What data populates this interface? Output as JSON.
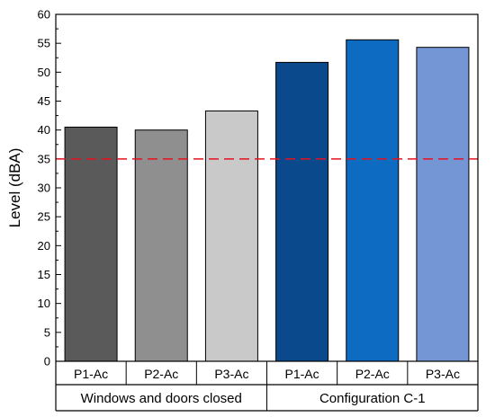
{
  "chart_data": {
    "type": "bar",
    "title": "",
    "xlabel": "",
    "ylabel": "Level (dBA)",
    "ylim": [
      0,
      60
    ],
    "yticks": [
      0,
      5,
      10,
      15,
      20,
      25,
      30,
      35,
      40,
      45,
      50,
      55,
      60
    ],
    "grid": false,
    "legend": "none",
    "categories": [
      "P1-Ac",
      "P2-Ac",
      "P3-Ac",
      "P1-Ac",
      "P2-Ac",
      "P3-Ac"
    ],
    "values": [
      40.5,
      40.0,
      43.3,
      51.7,
      55.6,
      54.3
    ],
    "bar_colors": [
      "#5a5a5a",
      "#8f8f8f",
      "#c9c9c9",
      "#0a4a8c",
      "#0d6bc2",
      "#7596d4"
    ],
    "groups": [
      {
        "label": "Windows and doors closed",
        "start": 0,
        "end": 3
      },
      {
        "label": "Configuration C-1",
        "start": 3,
        "end": 6
      }
    ],
    "reference_line": {
      "value": 35,
      "color": "#e8101f",
      "style": "dashed"
    }
  }
}
